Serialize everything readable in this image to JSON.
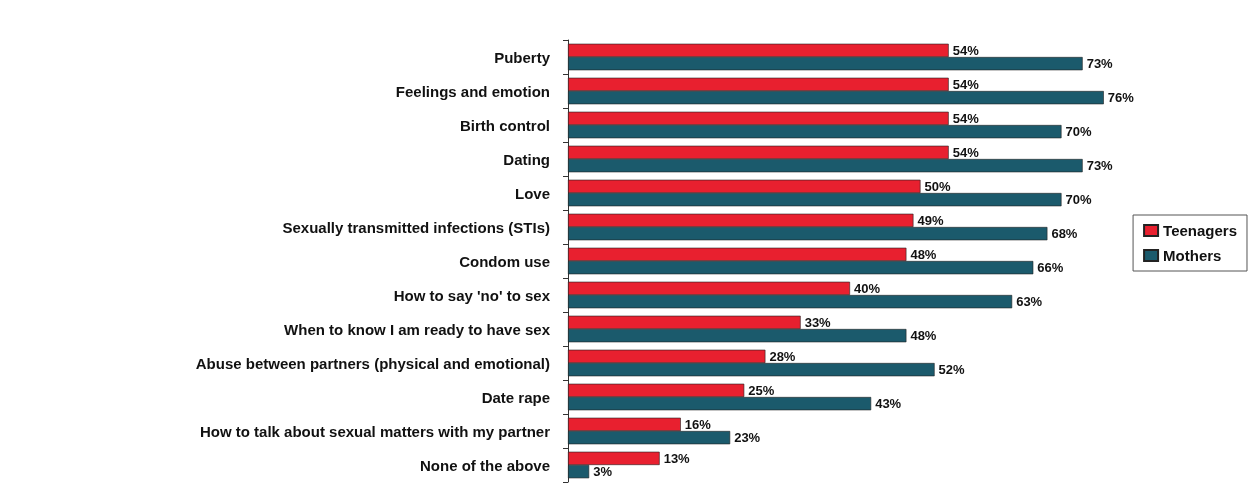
{
  "chart_data": {
    "type": "bar",
    "orientation": "horizontal",
    "categories": [
      "Puberty",
      "Feelings and emotion",
      "Birth control",
      "Dating",
      "Love",
      "Sexually transmitted infections (STIs)",
      "Condom use",
      "How to say 'no' to sex",
      "When to know I am ready to have sex",
      "Abuse between partners (physical and emotional)",
      "Date rape",
      "How to talk about sexual matters with my partner",
      "None of the above"
    ],
    "series": [
      {
        "name": "Teenagers",
        "color": "#e8202f",
        "values": [
          54,
          54,
          54,
          54,
          50,
          49,
          48,
          40,
          33,
          28,
          25,
          16,
          13
        ],
        "value_labels": [
          "54%",
          "54%",
          "54%",
          "54%",
          "50%",
          "49%",
          "48%",
          "40%",
          "33%",
          "28%",
          "25%",
          "16%",
          "13%"
        ]
      },
      {
        "name": "Mothers",
        "color": "#1b5a6c",
        "values": [
          73,
          76,
          70,
          73,
          70,
          68,
          66,
          63,
          48,
          52,
          43,
          23,
          3
        ],
        "value_labels": [
          "73%",
          "76%",
          "70%",
          "73%",
          "70%",
          "68%",
          "66%",
          "63%",
          "48%",
          "52%",
          "43%",
          "23%",
          "3%"
        ]
      }
    ],
    "tick_labels": "y",
    "grid": false,
    "legend": "right"
  }
}
